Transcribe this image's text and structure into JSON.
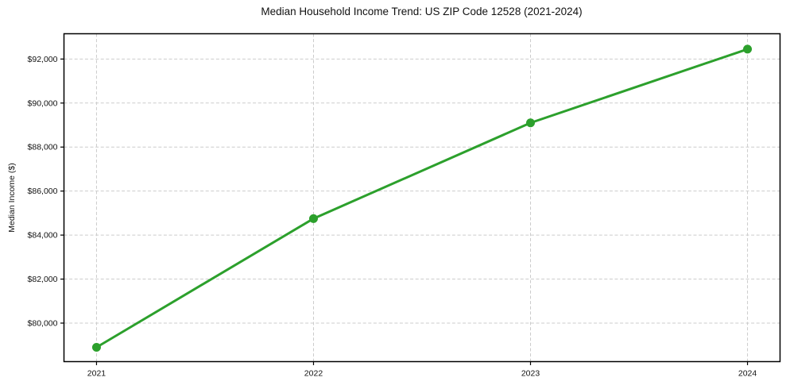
{
  "chart": {
    "title": "Median Household Income Trend: US ZIP Code 12528 (2021-2024)",
    "ylabel": "Median Income ($)"
  },
  "chart_data": {
    "type": "line",
    "title": "Median Household Income Trend: US ZIP Code 12528 (2021-2024)",
    "xlabel": "",
    "ylabel": "Median Income ($)",
    "x": [
      2021,
      2022,
      2023,
      2024
    ],
    "xtick_labels": [
      "2021",
      "2022",
      "2023",
      "2024"
    ],
    "series": [
      {
        "name": "Median Household Income",
        "values": [
          78900,
          84750,
          89100,
          92450
        ],
        "color": "#2ca02c",
        "marker": "circle",
        "marker_radius": 5.5,
        "line_width": 3
      }
    ],
    "yticks": [
      80000,
      82000,
      84000,
      86000,
      88000,
      90000,
      92000
    ],
    "ytick_labels": [
      "$80,000",
      "$82,000",
      "$84,000",
      "$86,000",
      "$88,000",
      "$90,000",
      "$92,000"
    ],
    "ylim": [
      78250,
      93150
    ],
    "xlim_padding_fraction": 0.05,
    "grid": true,
    "grid_style": "dashed",
    "legend_position": "none",
    "colors": {
      "line": "#2ca02c",
      "grid": "#cccccc",
      "spine": "#000000",
      "text": "#111111",
      "background": "#ffffff"
    }
  }
}
